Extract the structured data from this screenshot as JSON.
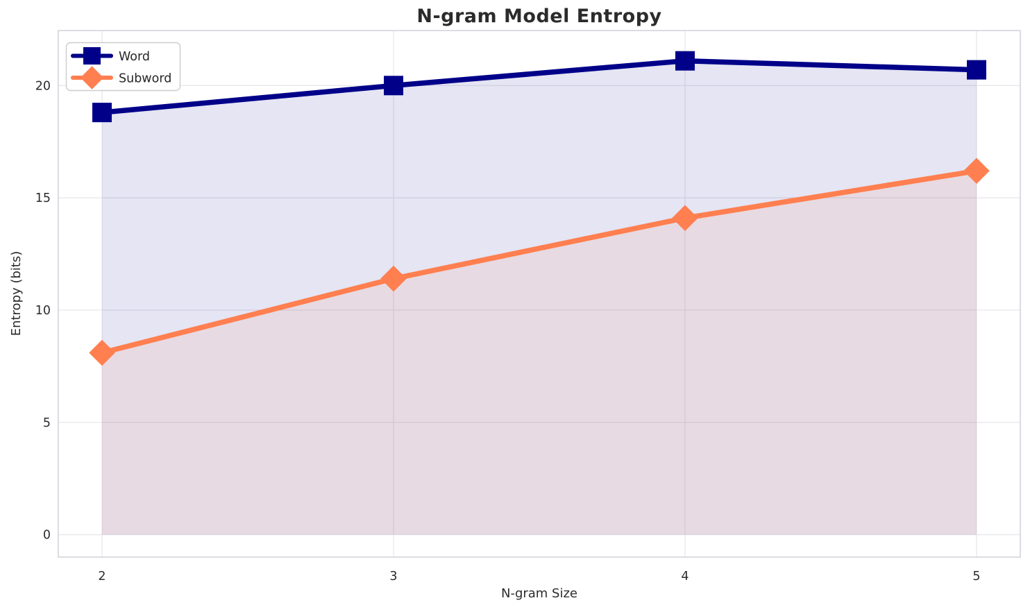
{
  "chart_data": {
    "type": "line",
    "title": "N-gram Model Entropy",
    "xlabel": "N-gram Size",
    "ylabel": "Entropy (bits)",
    "x": [
      2,
      3,
      4,
      5
    ],
    "xticks": [
      2,
      3,
      4,
      5
    ],
    "yticks": [
      0,
      5,
      10,
      15,
      20
    ],
    "xlim": [
      1.85,
      5.15
    ],
    "ylim": [
      -1.0,
      22.45
    ],
    "grid": true,
    "legend_position": "upper left",
    "series": [
      {
        "name": "Word",
        "values": [
          18.8,
          20.0,
          21.1,
          20.7
        ],
        "color": "#000089",
        "marker": "square",
        "fill_to_zero": true,
        "fill_opacity": 0.1
      },
      {
        "name": "Subword",
        "values": [
          8.1,
          11.4,
          14.1,
          16.2
        ],
        "color": "#FF7F50",
        "marker": "diamond",
        "fill_to_zero": true,
        "fill_opacity": 0.1
      }
    ]
  },
  "colors": {
    "background": "#ffffff",
    "grid": "#e9e9ee",
    "spine": "#d4d4da",
    "text": "#2b2b2b",
    "legend_border": "#cccccc",
    "legend_background": "#ffffff"
  }
}
